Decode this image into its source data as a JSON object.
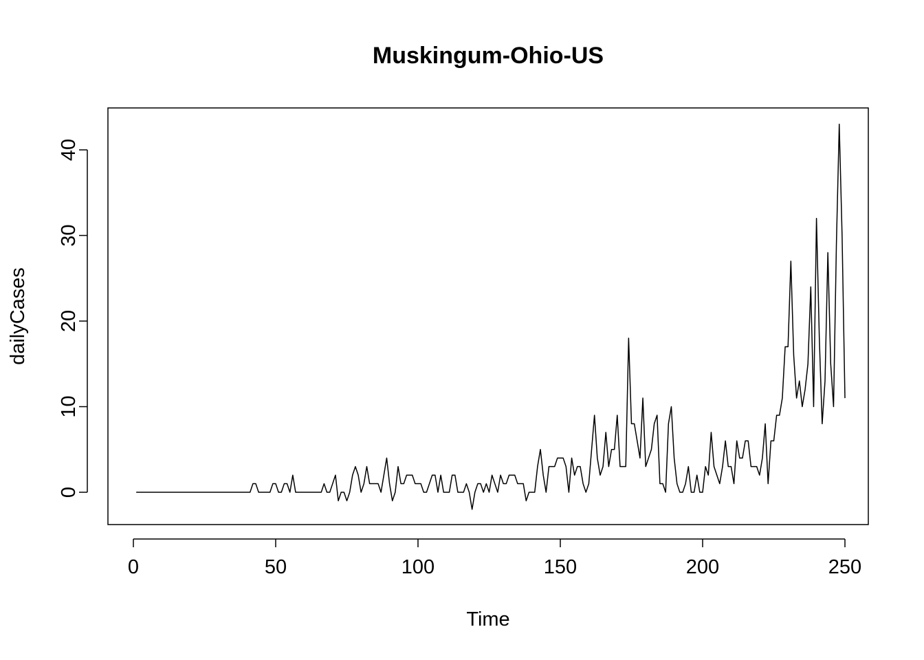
{
  "chart_data": {
    "type": "line",
    "title": "Muskingum-Ohio-US",
    "xlabel": "Time",
    "ylabel": "dailyCases",
    "xlim": [
      0,
      260
    ],
    "ylim": [
      -4,
      45
    ],
    "xticks": [
      0,
      50,
      100,
      150,
      200,
      250
    ],
    "yticks": [
      0,
      10,
      20,
      30,
      40
    ],
    "grid": false,
    "legend": "none",
    "series": [
      {
        "x_start": 1,
        "x_step": 1,
        "values": [
          0,
          0,
          0,
          0,
          0,
          0,
          0,
          0,
          0,
          0,
          0,
          0,
          0,
          0,
          0,
          0,
          0,
          0,
          0,
          0,
          0,
          0,
          0,
          0,
          0,
          0,
          0,
          0,
          0,
          0,
          0,
          0,
          0,
          0,
          0,
          0,
          0,
          0,
          0,
          0,
          0,
          1,
          1,
          0,
          0,
          0,
          0,
          0,
          1,
          1,
          0,
          0,
          1,
          1,
          0,
          2,
          0,
          0,
          0,
          0,
          0,
          0,
          0,
          0,
          0,
          0,
          1,
          0,
          0,
          1,
          2,
          -1,
          0,
          0,
          -1,
          0,
          2,
          3,
          2,
          0,
          1,
          3,
          1,
          1,
          1,
          1,
          0,
          2,
          4,
          1,
          -1,
          0,
          3,
          1,
          1,
          2,
          2,
          2,
          1,
          1,
          1,
          0,
          0,
          1,
          2,
          2,
          0,
          2,
          0,
          0,
          0,
          2,
          2,
          0,
          0,
          0,
          1,
          0,
          -2,
          0,
          1,
          1,
          0,
          1,
          0,
          2,
          1,
          0,
          2,
          1,
          1,
          2,
          2,
          2,
          1,
          1,
          1,
          -1,
          0,
          0,
          0,
          3,
          5,
          2,
          0,
          3,
          3,
          3,
          4,
          4,
          4,
          3,
          0,
          4,
          2,
          3,
          3,
          1,
          0,
          1,
          5,
          9,
          4,
          2,
          3,
          7,
          3,
          5,
          5,
          9,
          3,
          3,
          3,
          18,
          8,
          8,
          6,
          4,
          11,
          3,
          4,
          5,
          8,
          9,
          1,
          1,
          0,
          8,
          10,
          4,
          1,
          0,
          0,
          1,
          3,
          0,
          0,
          2,
          0,
          0,
          3,
          2,
          7,
          3,
          2,
          1,
          3,
          6,
          3,
          3,
          1,
          6,
          4,
          4,
          6,
          6,
          3,
          3,
          3,
          2,
          4,
          8,
          1,
          6,
          6,
          9,
          9,
          11,
          17,
          17,
          27,
          16,
          11,
          13,
          10,
          12,
          15,
          24,
          10,
          32,
          18,
          8,
          13,
          28,
          15,
          10,
          29,
          43,
          30,
          11
        ]
      }
    ]
  }
}
